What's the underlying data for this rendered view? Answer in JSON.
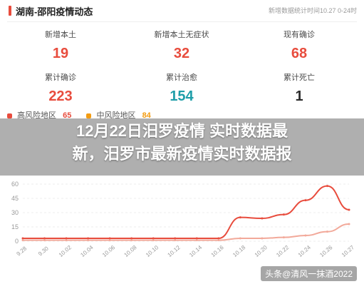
{
  "header": {
    "title": "湖南-邵阳疫情动态",
    "update_text": "新增数据统计时间10.27 0-24时"
  },
  "stats": [
    {
      "label": "新增本土",
      "value": "19",
      "color": "red"
    },
    {
      "label": "新增本土无症状",
      "value": "32",
      "color": "red"
    },
    {
      "label": "现有确诊",
      "value": "68",
      "color": "red"
    },
    {
      "label": "累计确诊",
      "value": "223",
      "color": "red"
    },
    {
      "label": "累计治愈",
      "value": "154",
      "color": "teal"
    },
    {
      "label": "累计死亡",
      "value": "1",
      "color": "dark"
    }
  ],
  "risk": {
    "high_label": "高风险地区",
    "high_value": "65",
    "mid_label": "中风险地区",
    "mid_value": "84"
  },
  "banner": {
    "line1": "12月22日汨罗疫情 实时数据最",
    "line2": "新，汨罗市最新疫情实时数据报"
  },
  "chart_data": {
    "type": "line",
    "x": [
      "9.28",
      "9.30",
      "10.02",
      "10.04",
      "10.06",
      "10.08",
      "10.10",
      "10.12",
      "10.14",
      "10.16",
      "10.18",
      "10.20",
      "10.22",
      "10.24",
      "10.26",
      "10.27"
    ],
    "ylim": [
      0,
      60
    ],
    "yticks": [
      "0",
      "15",
      "30",
      "45",
      "60"
    ],
    "series": [
      {
        "name": "",
        "color": "#e84c3d",
        "values": [
          3,
          3,
          3,
          3,
          3,
          3,
          3,
          3,
          3,
          3,
          25,
          24,
          28,
          43,
          58,
          33
        ]
      },
      {
        "name": "",
        "color": "#f2a99a",
        "values": [
          1,
          1,
          1,
          1,
          1,
          1,
          1,
          1,
          1,
          1,
          3,
          3,
          4,
          6,
          10,
          18
        ]
      }
    ]
  },
  "watermark": "头条@清风一抹酒2022"
}
